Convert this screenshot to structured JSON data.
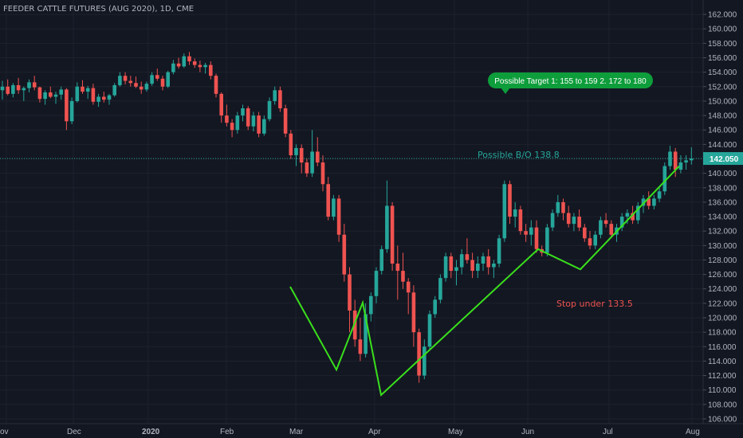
{
  "title": "FEEDER CATTLE FUTURES (AUG 2020), 1D, CME",
  "colors": {
    "background": "#131722",
    "grid": "#1e222d",
    "up": "#26a69a",
    "down": "#ef5350",
    "pattern": "#39e01c",
    "target_box": "#0e9d3b",
    "price_line": "#26a69a",
    "stop_text": "#ef5350",
    "breakout_text": "#26a69a"
  },
  "chart_data": {
    "type": "candlestick",
    "yaxis": {
      "range": [
        105,
        163
      ],
      "ticks": [
        "106.000",
        "108.000",
        "110.000",
        "112.000",
        "114.000",
        "116.000",
        "118.000",
        "120.000",
        "122.000",
        "124.000",
        "126.000",
        "128.000",
        "130.000",
        "132.000",
        "134.000",
        "136.000",
        "138.000",
        "140.000",
        "142.000",
        "144.000",
        "146.000",
        "148.000",
        "150.000",
        "152.000",
        "154.000",
        "156.000",
        "158.000",
        "160.000",
        "162.000"
      ]
    },
    "xaxis": {
      "labels": [
        "ov",
        "Dec",
        "2020",
        "Feb",
        "Mar",
        "Apr",
        "May",
        "Jun",
        "Jul",
        "Aug"
      ]
    },
    "last_price": "142.050",
    "series": [
      {
        "name": "",
        "values": [
          [
            151.5,
            152.8,
            150.2,
            152.0
          ],
          [
            152.0,
            153.0,
            150.8,
            151.0
          ],
          [
            151.0,
            152.5,
            150.5,
            152.2
          ],
          [
            152.2,
            153.2,
            151.0,
            151.5
          ],
          [
            151.5,
            152.0,
            150.0,
            151.8
          ],
          [
            151.8,
            153.0,
            151.2,
            152.6
          ],
          [
            152.6,
            153.5,
            151.5,
            151.9
          ],
          [
            151.9,
            152.0,
            149.8,
            150.3
          ],
          [
            150.3,
            151.5,
            149.5,
            151.2
          ],
          [
            151.2,
            152.0,
            150.4,
            150.6
          ],
          [
            150.6,
            151.3,
            149.6,
            150.9
          ],
          [
            150.9,
            152.0,
            150.2,
            151.6
          ],
          [
            151.6,
            151.8,
            146.0,
            147.2
          ],
          [
            147.2,
            150.5,
            146.8,
            150.0
          ],
          [
            150.0,
            152.6,
            149.8,
            152.0
          ],
          [
            152.0,
            152.9,
            151.0,
            151.3
          ],
          [
            151.3,
            152.1,
            150.3,
            151.8
          ],
          [
            151.8,
            152.4,
            149.5,
            149.9
          ],
          [
            149.9,
            151.0,
            149.2,
            150.6
          ],
          [
            150.6,
            151.3,
            149.8,
            150.2
          ],
          [
            150.2,
            151.0,
            149.5,
            150.8
          ],
          [
            150.8,
            152.5,
            150.6,
            152.2
          ],
          [
            152.2,
            154.0,
            152.0,
            153.5
          ],
          [
            153.5,
            154.0,
            152.3,
            152.8
          ],
          [
            152.8,
            153.5,
            152.0,
            152.5
          ],
          [
            152.5,
            153.4,
            151.8,
            152.0
          ],
          [
            152.0,
            152.7,
            151.0,
            151.6
          ],
          [
            151.6,
            152.7,
            151.3,
            152.4
          ],
          [
            152.4,
            154.0,
            152.1,
            153.6
          ],
          [
            153.6,
            154.5,
            152.8,
            153.1
          ],
          [
            153.1,
            153.5,
            151.5,
            152.0
          ],
          [
            152.0,
            154.2,
            151.8,
            154.0
          ],
          [
            154.0,
            155.7,
            153.7,
            155.2
          ],
          [
            155.2,
            156.0,
            154.5,
            154.8
          ],
          [
            154.8,
            156.6,
            154.6,
            156.2
          ],
          [
            156.2,
            156.8,
            155.0,
            155.5
          ],
          [
            155.5,
            155.9,
            154.6,
            155.0
          ],
          [
            155.0,
            155.6,
            154.0,
            154.7
          ],
          [
            154.7,
            155.3,
            153.8,
            155.0
          ],
          [
            155.0,
            155.5,
            153.0,
            153.5
          ],
          [
            153.5,
            153.8,
            150.5,
            151.0
          ],
          [
            151.0,
            151.2,
            147.0,
            148.0
          ],
          [
            148.0,
            149.5,
            146.5,
            147.0
          ],
          [
            147.0,
            147.5,
            145.0,
            146.0
          ],
          [
            146.0,
            148.5,
            145.5,
            148.0
          ],
          [
            148.0,
            149.5,
            147.2,
            149.0
          ],
          [
            149.0,
            149.3,
            146.0,
            146.5
          ],
          [
            146.5,
            148.5,
            145.8,
            148.0
          ],
          [
            148.0,
            148.5,
            145.0,
            145.5
          ],
          [
            145.5,
            148.0,
            145.2,
            147.5
          ],
          [
            147.5,
            150.5,
            147.2,
            150.0
          ],
          [
            150.0,
            152.0,
            149.5,
            151.5
          ],
          [
            151.5,
            152.0,
            148.5,
            149.0
          ],
          [
            149.0,
            149.5,
            145.0,
            145.5
          ],
          [
            145.5,
            146.0,
            142.0,
            142.5
          ],
          [
            142.5,
            144.0,
            141.0,
            143.5
          ],
          [
            143.5,
            144.0,
            140.0,
            141.5
          ],
          [
            141.5,
            142.0,
            139.5,
            140.0
          ],
          [
            140.0,
            146.0,
            139.5,
            143.0
          ],
          [
            143.0,
            145.0,
            141.0,
            141.5
          ],
          [
            141.5,
            142.5,
            137.5,
            138.5
          ],
          [
            138.5,
            139.5,
            133.5,
            134.0
          ],
          [
            134.0,
            137.0,
            133.5,
            136.5
          ],
          [
            136.5,
            137.0,
            130.5,
            131.5
          ],
          [
            131.5,
            133.0,
            125.0,
            126.0
          ],
          [
            126.0,
            127.0,
            118.0,
            121.0
          ],
          [
            121.0,
            122.5,
            116.0,
            117.0
          ],
          [
            117.0,
            120.0,
            114.0,
            115.0
          ],
          [
            115.0,
            122.0,
            114.5,
            120.5
          ],
          [
            120.5,
            123.5,
            119.5,
            123.0
          ],
          [
            123.0,
            127.0,
            122.0,
            126.5
          ],
          [
            126.5,
            130.0,
            126.0,
            129.5
          ],
          [
            129.5,
            139.0,
            129.0,
            135.5
          ],
          [
            135.5,
            136.0,
            126.5,
            127.5
          ],
          [
            127.5,
            130.0,
            122.5,
            126.5
          ],
          [
            126.5,
            129.0,
            124.0,
            125.0
          ],
          [
            125.0,
            125.5,
            120.5,
            123.5
          ],
          [
            123.5,
            124.5,
            116.0,
            118.0
          ],
          [
            118.0,
            118.5,
            111.0,
            112.0
          ],
          [
            112.0,
            117.0,
            111.5,
            116.0
          ],
          [
            116.0,
            121.0,
            115.5,
            120.5
          ],
          [
            120.5,
            123.0,
            120.0,
            122.5
          ],
          [
            122.5,
            126.0,
            122.0,
            125.5
          ],
          [
            125.5,
            129.0,
            125.0,
            128.5
          ],
          [
            128.5,
            129.0,
            125.5,
            126.5
          ],
          [
            126.5,
            128.0,
            124.5,
            127.0
          ],
          [
            127.0,
            129.5,
            126.0,
            128.8
          ],
          [
            128.8,
            131.0,
            127.5,
            128.0
          ],
          [
            128.0,
            129.0,
            125.5,
            126.5
          ],
          [
            126.5,
            128.5,
            125.5,
            127.5
          ],
          [
            127.5,
            129.0,
            126.5,
            128.5
          ],
          [
            128.5,
            129.5,
            126.0,
            127.0
          ],
          [
            127.0,
            128.0,
            125.5,
            127.5
          ],
          [
            127.5,
            131.5,
            127.0,
            131.0
          ],
          [
            131.0,
            139.0,
            130.5,
            138.5
          ],
          [
            138.5,
            139.0,
            133.0,
            134.0
          ],
          [
            134.0,
            136.0,
            132.5,
            135.0
          ],
          [
            135.0,
            135.5,
            131.5,
            132.0
          ],
          [
            132.0,
            133.0,
            130.5,
            131.5
          ],
          [
            131.5,
            133.5,
            130.0,
            132.5
          ],
          [
            132.5,
            133.5,
            129.0,
            129.5
          ],
          [
            129.5,
            130.0,
            128.5,
            129.0
          ],
          [
            129.0,
            133.0,
            128.5,
            132.5
          ],
          [
            132.5,
            135.0,
            132.0,
            134.5
          ],
          [
            134.5,
            137.0,
            134.0,
            136.0
          ],
          [
            136.0,
            136.5,
            133.5,
            134.5
          ],
          [
            134.5,
            135.5,
            132.5,
            133.0
          ],
          [
            133.0,
            134.5,
            132.0,
            134.0
          ],
          [
            134.0,
            135.0,
            132.0,
            132.5
          ],
          [
            132.5,
            133.0,
            130.5,
            131.0
          ],
          [
            131.0,
            132.0,
            129.5,
            130.0
          ],
          [
            130.0,
            132.0,
            129.5,
            131.5
          ],
          [
            131.5,
            134.0,
            131.0,
            133.5
          ],
          [
            133.5,
            134.5,
            132.5,
            133.0
          ],
          [
            133.0,
            133.5,
            131.0,
            131.5
          ],
          [
            131.5,
            133.0,
            130.5,
            132.5
          ],
          [
            132.5,
            134.5,
            132.0,
            134.0
          ],
          [
            134.0,
            135.0,
            133.0,
            134.5
          ],
          [
            134.5,
            135.5,
            133.0,
            133.5
          ],
          [
            133.5,
            136.0,
            133.0,
            135.5
          ],
          [
            135.5,
            137.0,
            134.5,
            136.5
          ],
          [
            136.5,
            137.5,
            135.0,
            135.5
          ],
          [
            135.5,
            137.0,
            135.0,
            136.5
          ],
          [
            136.5,
            138.0,
            136.0,
            137.5
          ],
          [
            137.5,
            141.5,
            137.0,
            141.0
          ],
          [
            141.0,
            143.8,
            140.5,
            143.0
          ],
          [
            143.0,
            143.5,
            139.5,
            140.5
          ],
          [
            140.5,
            142.5,
            140.0,
            141.5
          ],
          [
            141.5,
            142.5,
            140.5,
            141.8
          ],
          [
            141.8,
            143.6,
            141.2,
            142.05
          ]
        ]
      }
    ],
    "annotations": {
      "breakout": "Possible B/O 138.8",
      "stop": "Stop under 133.5",
      "target_line1": "Possible Target 1:  155 to 159   2.  172 to 180"
    }
  }
}
